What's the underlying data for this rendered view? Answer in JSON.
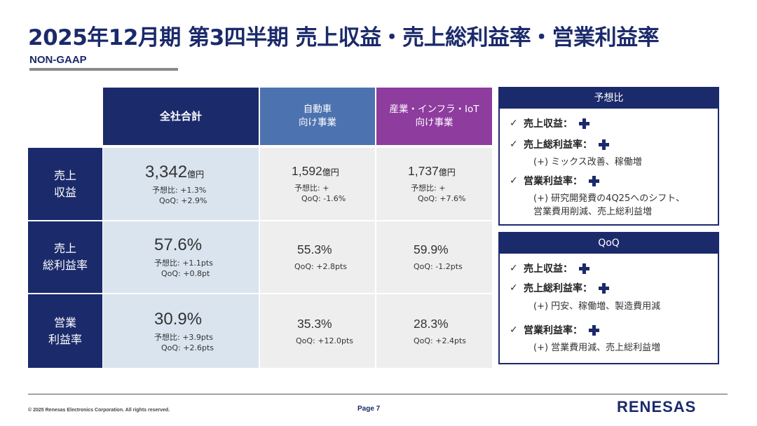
{
  "title": "2025年12月期 第3四半期 売上収益・売上総利益率・営業利益率",
  "subtitle": "NON-GAAP",
  "table": {
    "headers": {
      "total": "全社合計",
      "automotive": [
        "自動車",
        "向け事業"
      ],
      "iiot": [
        "産業・インフラ・IoT",
        "向け事業"
      ]
    },
    "rows": [
      {
        "label": [
          "売上",
          "収益"
        ],
        "total": {
          "value": "3,342",
          "unit": "億円",
          "notes": [
            "予想比: +1.3%",
            "QoQ: +2.9%"
          ]
        },
        "automotive": {
          "value": "1,592",
          "unit": "億円",
          "notes": [
            "予想比: +",
            "QoQ: -1.6%"
          ]
        },
        "iiot": {
          "value": "1,737",
          "unit": "億円",
          "notes": [
            "予想比: +",
            "QoQ: +7.6%"
          ]
        }
      },
      {
        "label": [
          "売上",
          "総利益率"
        ],
        "total": {
          "value": "57.6%",
          "unit": "",
          "notes": [
            "予想比: +1.1pts",
            "QoQ: +0.8pt"
          ]
        },
        "automotive": {
          "value": "55.3%",
          "unit": "",
          "notes": [
            "QoQ: +2.8pts"
          ]
        },
        "iiot": {
          "value": "59.9%",
          "unit": "",
          "notes": [
            "QoQ: -1.2pts"
          ]
        }
      },
      {
        "label": [
          "営業",
          "利益率"
        ],
        "total": {
          "value": "30.9%",
          "unit": "",
          "notes": [
            "予想比: +3.9pts",
            "QoQ: +2.6pts"
          ]
        },
        "automotive": {
          "value": "35.3%",
          "unit": "",
          "notes": [
            "QoQ: +12.0pts"
          ]
        },
        "iiot": {
          "value": "28.3%",
          "unit": "",
          "notes": [
            "QoQ: +2.4pts"
          ]
        }
      }
    ]
  },
  "panels": {
    "forecast": {
      "header": "予想比",
      "items": [
        {
          "check": "✓",
          "label": "売上収益：",
          "icon": "plus-icon"
        },
        {
          "check": "✓",
          "label": "売上総利益率：",
          "icon": "plus-icon",
          "detail": [
            "(+) ミックス改善、稼働増"
          ]
        },
        {
          "check": "✓",
          "label": "営業利益率：",
          "icon": "plus-icon",
          "detail": [
            "(+) 研究開発費の4Q25へのシフト、",
            "営業費用削減、売上総利益増"
          ]
        }
      ]
    },
    "qoq": {
      "header": "QoQ",
      "items": [
        {
          "check": "✓",
          "label": "売上収益：",
          "icon": "plus-icon"
        },
        {
          "check": "✓",
          "label": "売上総利益率：",
          "icon": "plus-icon",
          "detail": [
            "(+) 円安、稼働増、製造費用減"
          ]
        },
        {
          "check": "✓",
          "label": "営業利益率：",
          "icon": "plus-icon",
          "detail": [
            "(+) 営業費用減、売上総利益増"
          ]
        }
      ]
    }
  },
  "footer": {
    "copyright": "© 2025 Renesas Electronics Corporation. All rights reserved.",
    "page": "Page 7",
    "logo": "RENESAS"
  },
  "colors": {
    "brand_navy": "#1b2a6b",
    "automotive_blue": "#4d72b0",
    "iiot_purple": "#8e3c9e",
    "total_cell_bg": "#d9e4ef",
    "segment_cell_bg": "#eeeeee"
  }
}
